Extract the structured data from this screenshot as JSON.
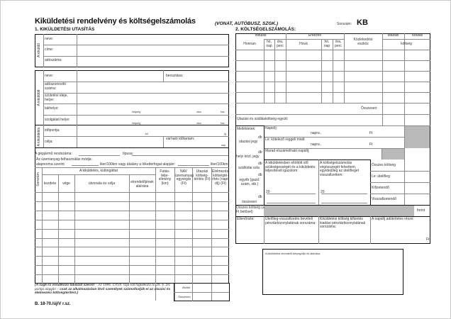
{
  "header": {
    "title": "Kiküldetési rendelvény és költségelszámolás",
    "section1": "1. KIKÜLDETÉSI UTASÍTÁS",
    "transport": "(VONAT, AUTÓBUSZ, SZGK.)",
    "serial_label": "Sorszám:",
    "serial_value": "KB",
    "section2": "2. KÖLTSÉGELSZÁMOLÁS:"
  },
  "sender": {
    "side": "A kiküldő",
    "name": "neve:",
    "address": "címe:",
    "tax": "adószáma:"
  },
  "employee": {
    "side": "A kiküldött",
    "name": "neve:",
    "position": "beosztása:",
    "taxid": "adóazonosító száma:",
    "birth": "születési ideje, helye:",
    "residence": "lakhelye:",
    "workplace": "szolgálati helye:",
    "city": "helység",
    "street": "utca",
    "no": "hsz."
  },
  "trip": {
    "side": "A kiküldetés",
    "date": "időpontja:",
    "purpose": "célja:",
    "duration": "várható időtartam:",
    "from": "-tól",
    "to": "-ig",
    "days": "nap"
  },
  "vehicle": {
    "plate": "A gépjármű rendszáma:",
    "type": "típusa:",
    "mode": "Az üzemanyag-felhasználás módja:",
    "norm": "alapnorma szerint",
    "liter1": "liter/100km vagy átalány a lökettérfogat alapján:",
    "liter2": "liter/100km"
  },
  "left_table": {
    "serial": "Sorszám",
    "group": "A kiküldetés, különgáttat",
    "start": "kezdete",
    "end": "vége",
    "route": "útvonala és célja",
    "ordered": "elrendelőjének aláírása",
    "km": "Futás-telje-sítmény (km)",
    "nav": "NAV üzemanyag egységár (Ft)",
    "travel": "Utazási költség-térítés (Ft)",
    "food": "Élelmezési költségté-rítés (napi-díj) (Ft)",
    "carry": "Átvitel",
    "total": "Összesen"
  },
  "footnote": {
    "bold1": "(A szgk-ra vonatkozó táblázat szerint",
    "normal1": " – Az 1995. CXVII. szja-val foglalkozó tv. 25. §. 2/c pontja alapján – ",
    "bold2": "csak az alkalmazásban lévő személyek számolhatják el az utazási és élelmezési költségtérítést.)",
    "code": "B. 18-70./új/V r.sz."
  },
  "right_table": {
    "departure": "Indulás",
    "arrival": "Érkezés",
    "from": "Honnan",
    "to": "Hová",
    "month_day": "hó, nap",
    "hour_min": "óra, perc",
    "vehicle": "Közlekedési eszköz",
    "travel": "utazási",
    "lodging": "szállás",
    "cost": "költség",
    "total": "Összesen:",
    "combined": "Utazási és szállásköltség együtt:"
  },
  "attachments": {
    "title": "Mellékletek:",
    "db": "db",
    "ticket": "utazási jegy",
    "local": "helyi közl. jegy",
    "hotel": "szállodai szla",
    "other": "egyéb (gazd. szám, stb.)",
    "total": "összesen"
  },
  "allowance": {
    "daily": "Napidíj:",
    "for_days": "napra ,",
    "ft": "Ft",
    "breakfast": "Le: kötelező reggeli miatt",
    "remaining": "Marad elszámolható napidíj:"
  },
  "certify": {
    "text1": "A kiküldetésben eltöltött idő szükségességét és a kiküldetés teljesítését igazolom:",
    "text2": "A költségelszámolás végösszegét felvettem, egyidejűleg az útelőleget visszafizettem:",
    "year": "20"
  },
  "summary": {
    "total": "Összes költség",
    "advance": "Le: útelőleg",
    "payable": "Kifizetendő",
    "refund": "Visszafizetendő",
    "words": "Összes költség (a Ft betűvel)",
    "forint": "forint"
  },
  "check": {
    "checked": "Ellenőrizte:",
    "receipt": "Útelőleg-visszafizetés bevételi pénztárbizonylatának sorszáma:",
    "payout": "Kiküldetési költség kifizetés kiadási pénztárbizonylatának sorszáma:",
    "taxable": "A napidíj adóköteles része:",
    "ft": "Ft"
  },
  "stamp": {
    "label": "A kiküldetést elrendelő bélyegzője és aláírása:"
  },
  "colors": {
    "line": "#111111",
    "grid": "#888888",
    "shade": "#b9b9b9"
  }
}
